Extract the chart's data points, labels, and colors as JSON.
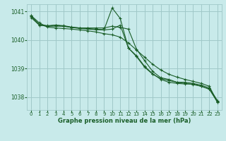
{
  "bg_color": "#c8eaea",
  "grid_color": "#a0c8c8",
  "line_color": "#1a5e28",
  "xlabel": "Graphe pression niveau de la mer (hPa)",
  "ylim": [
    1037.55,
    1041.25
  ],
  "xlim": [
    -0.5,
    23.5
  ],
  "yticks": [
    1038,
    1039,
    1040,
    1041
  ],
  "xticks": [
    0,
    1,
    2,
    3,
    4,
    5,
    6,
    7,
    8,
    9,
    10,
    11,
    12,
    13,
    14,
    15,
    16,
    17,
    18,
    19,
    20,
    21,
    22,
    23
  ],
  "series": [
    [
      1040.85,
      1040.6,
      1040.45,
      1040.42,
      1040.4,
      1040.38,
      1040.35,
      1040.32,
      1040.28,
      1040.22,
      1040.18,
      1040.1,
      1039.9,
      1039.65,
      1039.4,
      1039.15,
      1038.95,
      1038.8,
      1038.7,
      1038.62,
      1038.55,
      1038.48,
      1038.38,
      1037.82
    ],
    [
      1040.78,
      1040.52,
      1040.48,
      1040.52,
      1040.48,
      1040.44,
      1040.4,
      1040.38,
      1040.36,
      1040.35,
      1040.38,
      1040.52,
      1039.72,
      1039.42,
      1039.05,
      1038.8,
      1038.65,
      1038.58,
      1038.52,
      1038.48,
      1038.44,
      1038.38,
      1038.28,
      1037.85
    ],
    [
      1040.82,
      1040.55,
      1040.5,
      1040.52,
      1040.5,
      1040.45,
      1040.42,
      1040.4,
      1040.38,
      1040.36,
      1041.12,
      1040.75,
      1039.72,
      1039.45,
      1039.08,
      1038.82,
      1038.62,
      1038.52,
      1038.48,
      1038.46,
      1038.46,
      1038.38,
      1038.28,
      1037.82
    ],
    [
      1040.85,
      1040.52,
      1040.48,
      1040.48,
      1040.48,
      1040.44,
      1040.42,
      1040.42,
      1040.42,
      1040.42,
      1040.48,
      1040.44,
      1040.38,
      1039.68,
      1039.28,
      1038.9,
      1038.68,
      1038.62,
      1038.52,
      1038.52,
      1038.48,
      1038.42,
      1038.32,
      1037.88
    ]
  ]
}
